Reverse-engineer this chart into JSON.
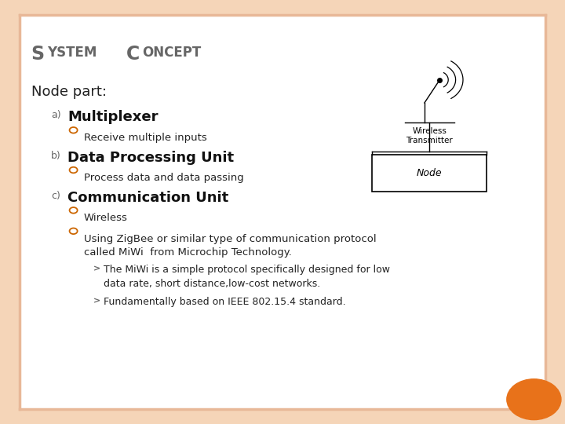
{
  "bg_color": "#ffffff",
  "border_color": "#e8b898",
  "slide_bg": "#f5d5b8",
  "title_color": "#666666",
  "text_color": "#222222",
  "label_color": "#666666",
  "heading_color": "#111111",
  "bullet_circle_color": "#cc6600",
  "orange_circle_color": "#e8721a",
  "title_S": "S",
  "title_ystem": "YSTEM",
  "title_C": "C",
  "title_oncept": "ONCEPT",
  "node_part": "Node part:",
  "items": [
    {
      "label": "a)",
      "heading": "Multiplexer",
      "bullets": [
        "Receive multiple inputs"
      ]
    },
    {
      "label": "b)",
      "heading": "Data Processing Unit",
      "bullets": [
        "Process data and data passing"
      ]
    },
    {
      "label": "c)",
      "heading": "Communication Unit",
      "bullets": [
        "Wireless",
        "Using ZigBee or similar type of communication protocol\ncalled MiWi  from Microchip Technology."
      ]
    }
  ],
  "sub_bullets": [
    "The MiWi is a simple protocol specifically designed for low\ndata rate, short distance,low-cost networks.",
    "Fundamentally based on IEEE 802.15.4 standard."
  ]
}
